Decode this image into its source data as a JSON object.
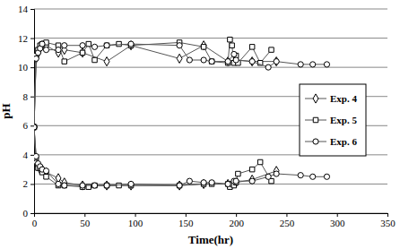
{
  "chart_data": {
    "type": "line",
    "x_label": "Time(hr)",
    "y_label": "pH",
    "xlim": [
      0,
      350
    ],
    "xticks": [
      0,
      50,
      100,
      150,
      200,
      250,
      300,
      350
    ],
    "ylim": [
      0,
      14
    ],
    "yticks": [
      0,
      2,
      4,
      6,
      8,
      10,
      12,
      14
    ],
    "grid": true,
    "legend": "right",
    "series": [
      {
        "name": "Exp. 4",
        "color": "#555555",
        "marker": "diamond",
        "x": [
          0,
          2,
          4,
          6,
          8,
          12,
          24,
          30,
          48,
          72,
          96,
          144,
          168,
          192,
          200,
          216,
          240
        ],
        "values": [
          5.9,
          10.6,
          11.0,
          11.3,
          11.5,
          11.5,
          11.0,
          11.2,
          11.0,
          10.4,
          11.5,
          10.6,
          11.5,
          10.4,
          10.5,
          10.4,
          10.4
        ],
        "low_values": [
          5.9,
          3.5,
          3.2,
          3.0,
          3.0,
          2.8,
          2.4,
          2.1,
          1.9,
          1.9,
          1.9,
          1.9,
          2.0,
          2.0,
          2.1,
          2.3,
          2.9
        ]
      },
      {
        "name": "Exp. 5",
        "color": "#555555",
        "marker": "square",
        "x": [
          0,
          2,
          4,
          6,
          8,
          12,
          24,
          30,
          48,
          54,
          60,
          72,
          84,
          96,
          144,
          168,
          176,
          192,
          194,
          196,
          198,
          200,
          202,
          216,
          224,
          235
        ],
        "values": [
          5.9,
          10.8,
          11.2,
          11.5,
          11.6,
          11.7,
          11.5,
          10.4,
          11.0,
          11.6,
          10.5,
          11.5,
          11.6,
          11.5,
          11.7,
          11.4,
          10.4,
          10.3,
          11.9,
          11.5,
          10.3,
          10.8,
          10.3,
          11.4,
          10.3,
          11.2
        ],
        "low_values": [
          5.9,
          3.8,
          3.1,
          3.1,
          2.8,
          2.5,
          1.9,
          1.9,
          1.8,
          1.8,
          1.9,
          1.9,
          1.9,
          1.9,
          1.9,
          2.0,
          2.0,
          2.0,
          1.8,
          2.0,
          1.9,
          2.1,
          2.7,
          3.0,
          3.5,
          2.2
        ]
      },
      {
        "name": "Exp. 6",
        "color": "#555555",
        "marker": "circle",
        "x": [
          0,
          2,
          4,
          6,
          8,
          12,
          24,
          30,
          48,
          60,
          72,
          96,
          144,
          154,
          168,
          176,
          192,
          198,
          200,
          216,
          232,
          240,
          264,
          276,
          290
        ],
        "values": [
          5.9,
          10.6,
          11.0,
          11.3,
          11.6,
          11.2,
          11.2,
          11.5,
          11.5,
          11.4,
          11.5,
          11.6,
          11.5,
          10.5,
          10.5,
          10.4,
          10.4,
          10.9,
          10.5,
          10.4,
          10.0,
          10.4,
          10.2,
          10.2,
          10.2
        ],
        "low_values": [
          5.9,
          3.9,
          3.4,
          3.2,
          3.0,
          2.9,
          2.0,
          1.9,
          1.9,
          1.9,
          1.9,
          2.0,
          1.9,
          2.2,
          2.1,
          2.1,
          2.0,
          2.2,
          2.2,
          2.2,
          2.5,
          2.7,
          2.6,
          2.5,
          2.5
        ]
      }
    ]
  }
}
